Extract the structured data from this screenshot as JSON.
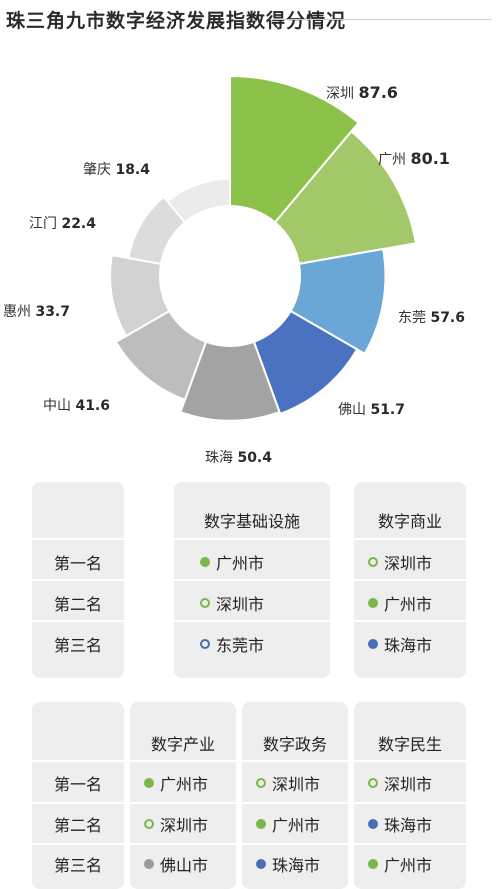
{
  "title": "珠三角九市数字经济发展指数得分情况",
  "chart_data": {
    "type": "pie",
    "variant": "rose",
    "categories": [
      "深圳",
      "广州",
      "东莞",
      "佛山",
      "珠海",
      "中山",
      "惠州",
      "江门",
      "肇庆"
    ],
    "values": [
      87.6,
      80.1,
      57.6,
      51.7,
      50.4,
      41.6,
      33.7,
      22.4,
      18.4
    ],
    "value_labels": [
      "87.6",
      "80.1",
      "57.6",
      "51.7",
      "50.4",
      "41.6",
      "33.7",
      "22.4",
      "18.4"
    ],
    "colors": [
      "#8dc24a",
      "#a3c869",
      "#6aa6d6",
      "#4a72c0",
      "#a3a3a3",
      "#bdbdbd",
      "#d2d2d2",
      "#dcdcdc",
      "#ebebeb"
    ]
  },
  "table1": {
    "headers": [
      "数字基础设施",
      "数字商业"
    ],
    "rows": [
      {
        "rank": "第一名",
        "cells": [
          {
            "city": "广州市",
            "marker": "filled",
            "color": "#7ab648"
          },
          {
            "city": "深圳市",
            "marker": "hollow",
            "color": "#7ab648"
          }
        ]
      },
      {
        "rank": "第二名",
        "cells": [
          {
            "city": "深圳市",
            "marker": "hollow",
            "color": "#7ab648"
          },
          {
            "city": "广州市",
            "marker": "filled",
            "color": "#7ab648"
          }
        ]
      },
      {
        "rank": "第三名",
        "cells": [
          {
            "city": "东莞市",
            "marker": "hollow",
            "color": "#4a6fb5"
          },
          {
            "city": "珠海市",
            "marker": "filled",
            "color": "#4a6fb5"
          }
        ]
      }
    ]
  },
  "table2": {
    "headers": [
      "数字产业",
      "数字政务",
      "数字民生"
    ],
    "rows": [
      {
        "rank": "第一名",
        "cells": [
          {
            "city": "广州市",
            "marker": "filled",
            "color": "#7ab648"
          },
          {
            "city": "深圳市",
            "marker": "hollow",
            "color": "#7ab648"
          },
          {
            "city": "深圳市",
            "marker": "hollow",
            "color": "#7ab648"
          }
        ]
      },
      {
        "rank": "第二名",
        "cells": [
          {
            "city": "深圳市",
            "marker": "hollow",
            "color": "#7ab648"
          },
          {
            "city": "广州市",
            "marker": "filled",
            "color": "#7ab648"
          },
          {
            "city": "珠海市",
            "marker": "filled",
            "color": "#4a6fb5"
          }
        ]
      },
      {
        "rank": "第三名",
        "cells": [
          {
            "city": "佛山市",
            "marker": "filled",
            "color": "#9a9a9a"
          },
          {
            "city": "珠海市",
            "marker": "filled",
            "color": "#4a6fb5"
          },
          {
            "city": "广州市",
            "marker": "filled",
            "color": "#7ab648"
          }
        ]
      }
    ]
  }
}
